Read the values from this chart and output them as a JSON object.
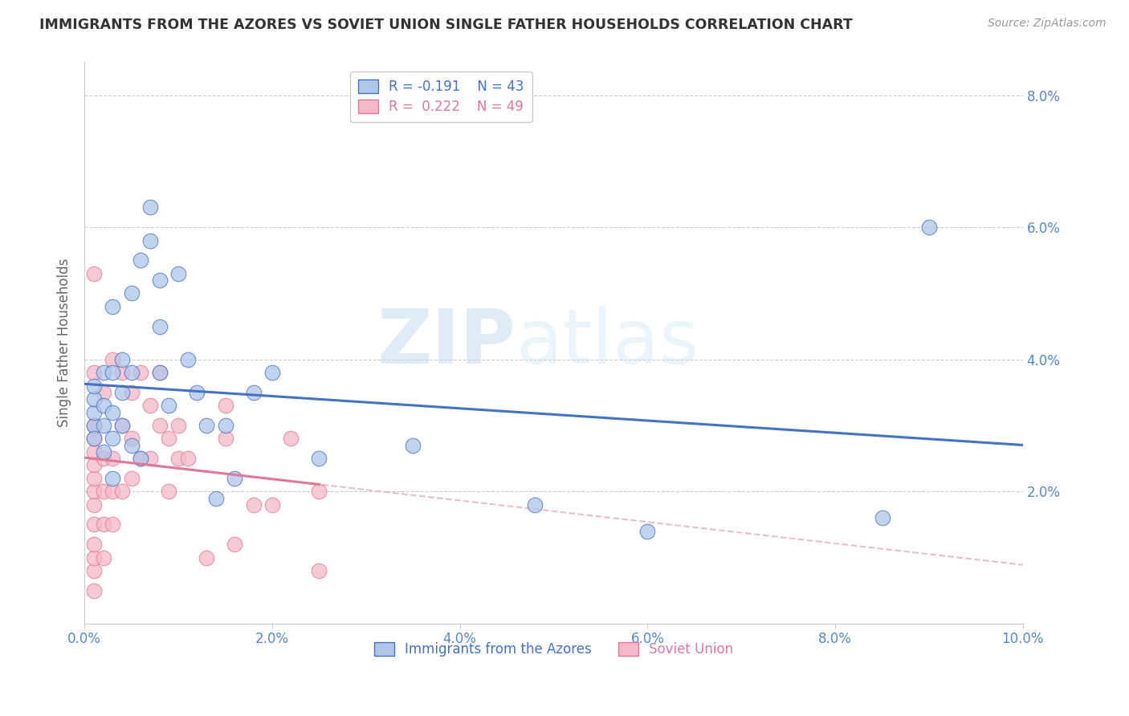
{
  "title": "IMMIGRANTS FROM THE AZORES VS SOVIET UNION SINGLE FATHER HOUSEHOLDS CORRELATION CHART",
  "source": "Source: ZipAtlas.com",
  "ylabel": "Single Father Households",
  "xmin": 0.0,
  "xmax": 0.1,
  "ymin": 0.0,
  "ymax": 0.085,
  "yticks": [
    0.02,
    0.04,
    0.06,
    0.08
  ],
  "xticks": [
    0.0,
    0.02,
    0.04,
    0.06,
    0.08,
    0.1
  ],
  "legend_azores": "Immigrants from the Azores",
  "legend_soviet": "Soviet Union",
  "r_azores": -0.191,
  "n_azores": 43,
  "r_soviet": 0.222,
  "n_soviet": 49,
  "color_azores": "#aec6e8",
  "color_soviet": "#f5b8c8",
  "line_color_azores": "#4472c4",
  "line_color_soviet": "#e07898",
  "dashed_color": "#e0b0c0",
  "watermark_zip": "ZIP",
  "watermark_atlas": "atlas",
  "azores_x": [
    0.001,
    0.001,
    0.001,
    0.001,
    0.001,
    0.002,
    0.002,
    0.002,
    0.002,
    0.003,
    0.003,
    0.003,
    0.003,
    0.003,
    0.004,
    0.004,
    0.004,
    0.005,
    0.005,
    0.005,
    0.006,
    0.006,
    0.007,
    0.007,
    0.008,
    0.008,
    0.008,
    0.009,
    0.01,
    0.011,
    0.012,
    0.013,
    0.014,
    0.015,
    0.016,
    0.018,
    0.02,
    0.025,
    0.035,
    0.048,
    0.06,
    0.085,
    0.09
  ],
  "azores_y": [
    0.03,
    0.032,
    0.034,
    0.036,
    0.028,
    0.026,
    0.03,
    0.033,
    0.038,
    0.022,
    0.028,
    0.032,
    0.038,
    0.048,
    0.03,
    0.035,
    0.04,
    0.027,
    0.05,
    0.038,
    0.025,
    0.055,
    0.058,
    0.063,
    0.045,
    0.052,
    0.038,
    0.033,
    0.053,
    0.04,
    0.035,
    0.03,
    0.019,
    0.03,
    0.022,
    0.035,
    0.038,
    0.025,
    0.027,
    0.018,
    0.014,
    0.016,
    0.06
  ],
  "soviet_x": [
    0.001,
    0.001,
    0.001,
    0.001,
    0.001,
    0.001,
    0.001,
    0.001,
    0.001,
    0.001,
    0.001,
    0.001,
    0.001,
    0.001,
    0.002,
    0.002,
    0.002,
    0.002,
    0.002,
    0.003,
    0.003,
    0.003,
    0.003,
    0.004,
    0.004,
    0.004,
    0.005,
    0.005,
    0.005,
    0.006,
    0.006,
    0.007,
    0.007,
    0.008,
    0.008,
    0.009,
    0.009,
    0.01,
    0.01,
    0.011,
    0.013,
    0.015,
    0.015,
    0.016,
    0.018,
    0.02,
    0.022,
    0.025,
    0.025
  ],
  "soviet_y": [
    0.005,
    0.008,
    0.01,
    0.012,
    0.015,
    0.018,
    0.02,
    0.022,
    0.024,
    0.026,
    0.028,
    0.03,
    0.038,
    0.053,
    0.01,
    0.015,
    0.02,
    0.025,
    0.035,
    0.015,
    0.02,
    0.025,
    0.04,
    0.02,
    0.03,
    0.038,
    0.022,
    0.028,
    0.035,
    0.025,
    0.038,
    0.025,
    0.033,
    0.03,
    0.038,
    0.02,
    0.028,
    0.025,
    0.03,
    0.025,
    0.01,
    0.028,
    0.033,
    0.012,
    0.018,
    0.018,
    0.028,
    0.02,
    0.008
  ]
}
